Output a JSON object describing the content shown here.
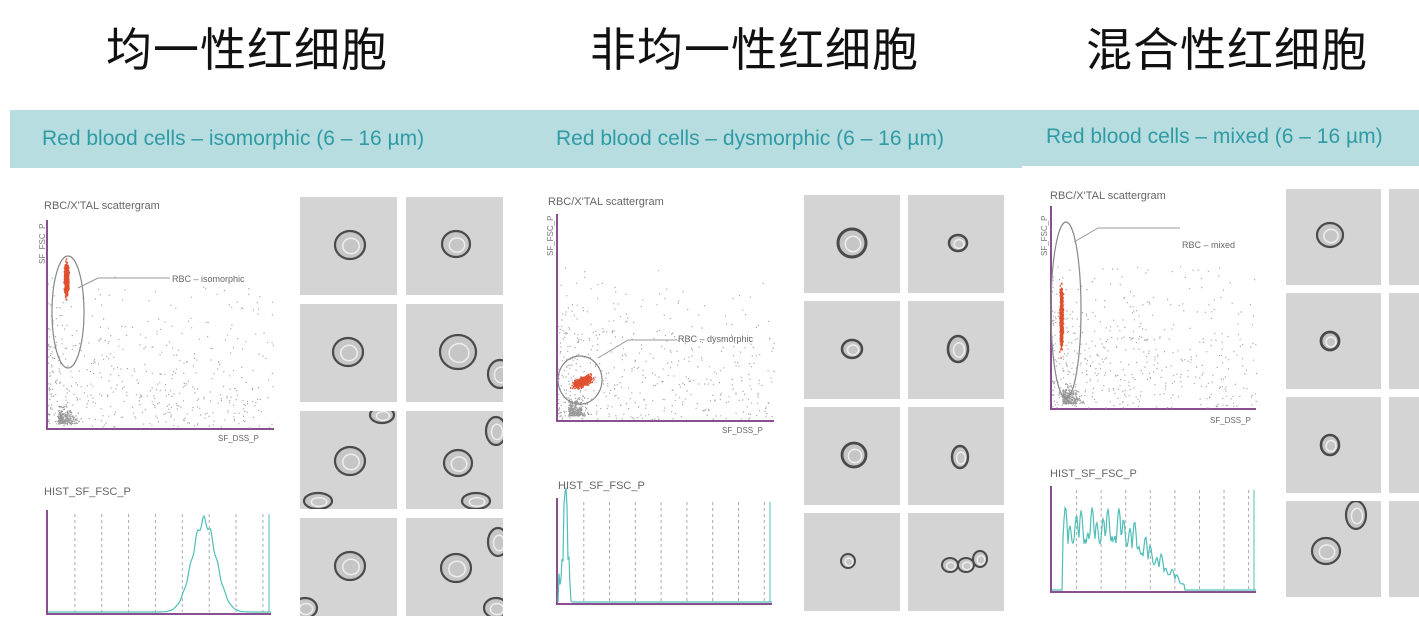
{
  "titles": [
    "均一性红细胞",
    "非均一性红细胞",
    "混合性红细胞"
  ],
  "panels": [
    {
      "heading": "Red blood cells – isomorphic (6 – 16 µm)",
      "scatter_label": "RBC/X'TAL scattergram",
      "y_axis": "SF_FSC_P",
      "x_axis": "SF_DSS_P",
      "annotation": "RBC – isomorphic",
      "hist_label": "HIST_SF_FSC_P"
    },
    {
      "heading": "Red blood cells – dysmorphic (6 – 16 µm)",
      "scatter_label": "RBC/X'TAL scattergram",
      "y_axis": "SF_FSC_P",
      "x_axis": "SF_DSS_P",
      "annotation": "RBC – dysmorphic",
      "hist_label": "HIST_SF_FSC_P"
    },
    {
      "heading": "Red blood cells – mixed (6 – 16 µm)",
      "scatter_label": "RBC/X'TAL scattergram",
      "y_axis": "SF_FSC_P",
      "x_axis": "SF_DSS_P",
      "annotation": "RBC – mixed",
      "hist_label": "HIST_SF_FSC_P"
    }
  ],
  "colors": {
    "header_bg": "#b8dde0",
    "header_text": "#2f9ba5",
    "axis": "#8a4f8e",
    "cluster": "#e0502e",
    "histogram": "#4fbfb8",
    "cell_bg": "#d4d4d4"
  }
}
